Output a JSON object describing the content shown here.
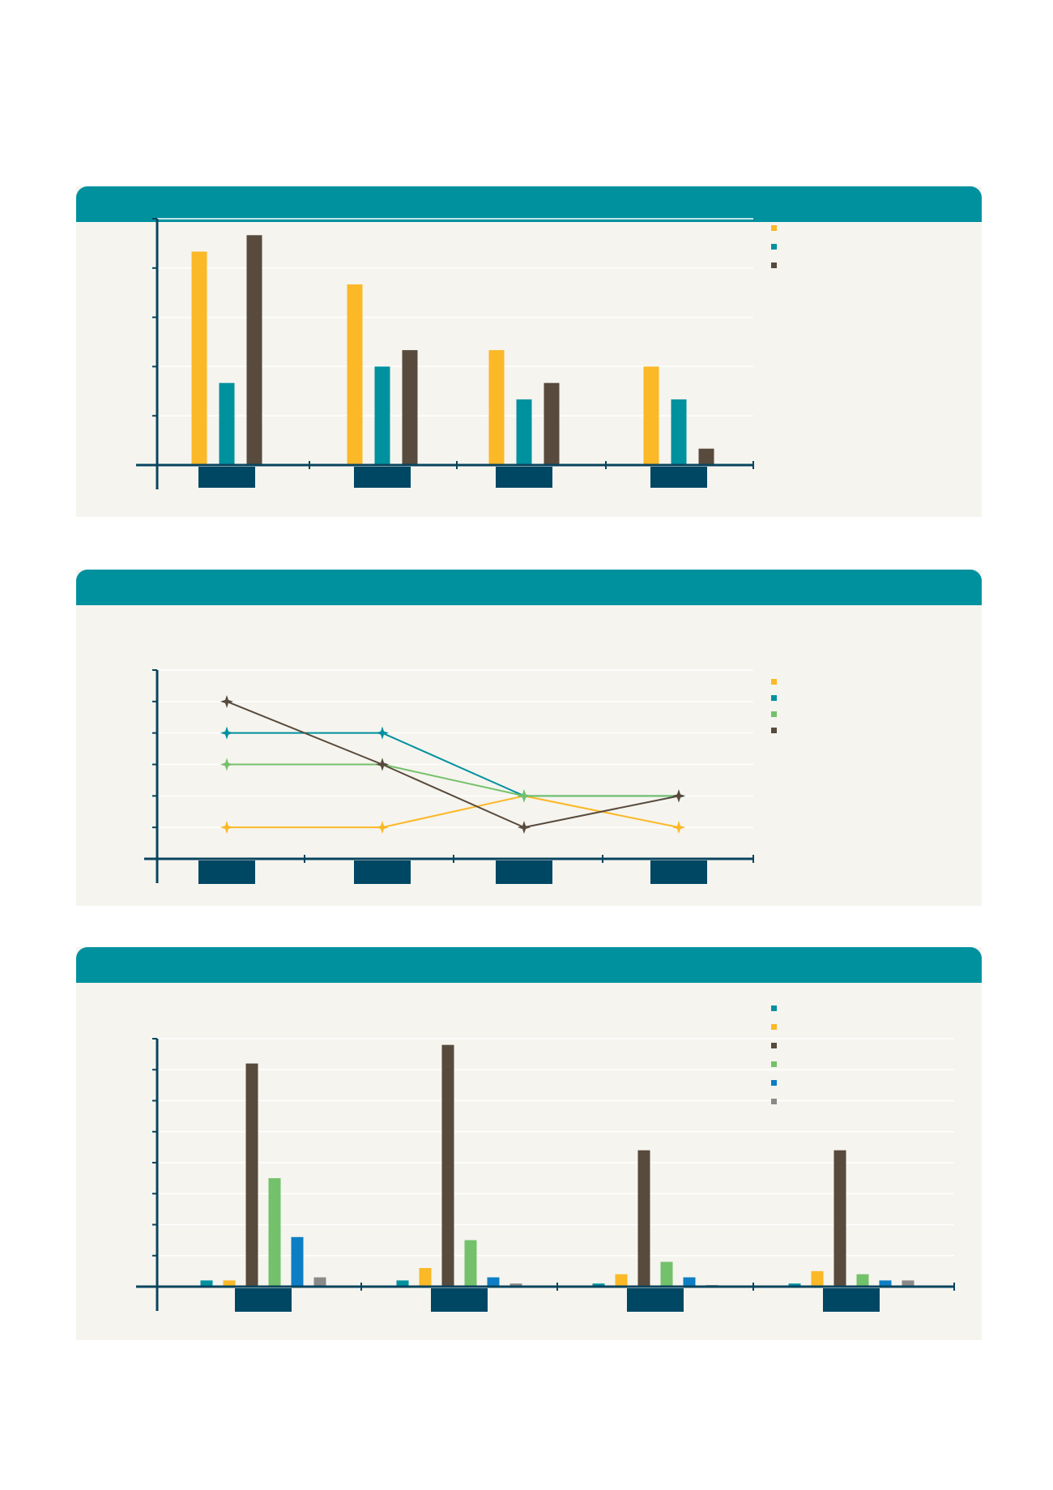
{
  "colors": {
    "panel_header": "#00919f",
    "panel_background": "#f5f4ee",
    "axis": "#08445e",
    "category_box": "#004764",
    "gridline": "#ffffff",
    "series_yellow": "#fbb827",
    "series_teal": "#00919f",
    "series_brown": "#584a3c",
    "series_green": "#74c16b",
    "series_blue": "#0d7ec3",
    "series_gray": "#8a8a8a"
  },
  "chart_data": [
    {
      "type": "bar",
      "title": "",
      "categories": [
        "",
        "",
        "",
        ""
      ],
      "series": [
        {
          "color": "#fbb827",
          "values": [
            13,
            11,
            7,
            6
          ]
        },
        {
          "color": "#00919f",
          "values": [
            5,
            6,
            4,
            4
          ]
        },
        {
          "color": "#584a3c",
          "values": [
            14,
            7,
            5,
            1
          ]
        }
      ],
      "ylim": [
        0,
        15
      ],
      "yticks": [
        0,
        3,
        6,
        9,
        12,
        15
      ],
      "grid": true,
      "legend": "top-right"
    },
    {
      "type": "line",
      "title": "",
      "categories": [
        "",
        "",
        "",
        ""
      ],
      "series": [
        {
          "color": "#fbb827",
          "values": [
            1,
            1,
            2,
            1
          ]
        },
        {
          "color": "#00919f",
          "values": [
            4,
            4,
            2,
            2
          ]
        },
        {
          "color": "#74c16b",
          "values": [
            3,
            3,
            2,
            2
          ]
        },
        {
          "color": "#584a3c",
          "values": [
            5,
            3,
            1,
            2
          ]
        }
      ],
      "ylim": [
        0,
        6
      ],
      "yticks": [
        0,
        1,
        2,
        3,
        4,
        5,
        6
      ],
      "grid": true,
      "legend": "top-right"
    },
    {
      "type": "bar",
      "title": "",
      "categories": [
        "",
        "",
        "",
        ""
      ],
      "series": [
        {
          "color": "#00919f",
          "values": [
            0.2,
            0.2,
            0.1,
            0.1
          ]
        },
        {
          "color": "#fbb827",
          "values": [
            0.2,
            0.6,
            0.4,
            0.5
          ]
        },
        {
          "color": "#584a3c",
          "values": [
            7.2,
            7.8,
            4.4,
            4.4
          ]
        },
        {
          "color": "#74c16b",
          "values": [
            3.5,
            1.5,
            0.8,
            0.4
          ]
        },
        {
          "color": "#0d7ec3",
          "values": [
            1.6,
            0.3,
            0.3,
            0.2
          ]
        },
        {
          "color": "#8a8a8a",
          "values": [
            0.3,
            0.1,
            0.05,
            0.2
          ]
        }
      ],
      "ylim": [
        0,
        8
      ],
      "yticks": [
        0,
        1,
        2,
        3,
        4,
        5,
        6,
        7,
        8
      ],
      "grid": true,
      "legend": "top-right"
    }
  ]
}
